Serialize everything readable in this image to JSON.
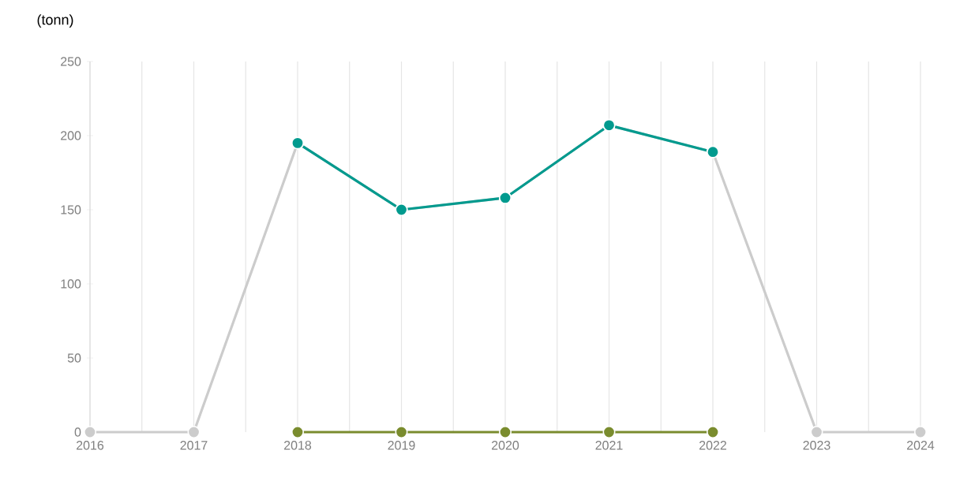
{
  "chart_data": {
    "type": "line",
    "ylabel": "(tonn)",
    "x": [
      2016,
      2017,
      2018,
      2019,
      2020,
      2021,
      2022,
      2023,
      2024
    ],
    "series": [
      {
        "color": "#cccccc",
        "values": [
          0,
          0,
          195,
          150,
          158,
          207,
          189,
          0,
          0
        ]
      },
      {
        "color": "#009a8e",
        "x": [
          2018,
          2019,
          2020,
          2021,
          2022
        ],
        "values": [
          195,
          150,
          158,
          207,
          189
        ]
      },
      {
        "color": "#7a8c2e",
        "x": [
          2018,
          2019,
          2020,
          2021,
          2022
        ],
        "values": [
          0,
          0,
          0,
          0,
          0
        ]
      }
    ],
    "xlim": [
      2016,
      2024
    ],
    "ylim": [
      0,
      250
    ],
    "xticks": [
      2016,
      {
        "value": 2016.5,
        "label": null
      },
      2017,
      {
        "value": 2017.5,
        "label": null
      },
      2018,
      {
        "value": 2018.5,
        "label": null
      },
      2019,
      {
        "value": 2019.5,
        "label": null
      },
      2020,
      {
        "value": 2020.5,
        "label": null
      },
      2021,
      {
        "value": 2021.5,
        "label": null
      },
      2022,
      {
        "value": 2022.5,
        "label": null
      },
      2023,
      {
        "value": 2023.5,
        "label": null
      },
      2024
    ],
    "yticks": [
      0,
      50,
      100,
      150,
      200,
      250
    ],
    "grid": "x",
    "marker": "circle",
    "line_style": "solid"
  }
}
